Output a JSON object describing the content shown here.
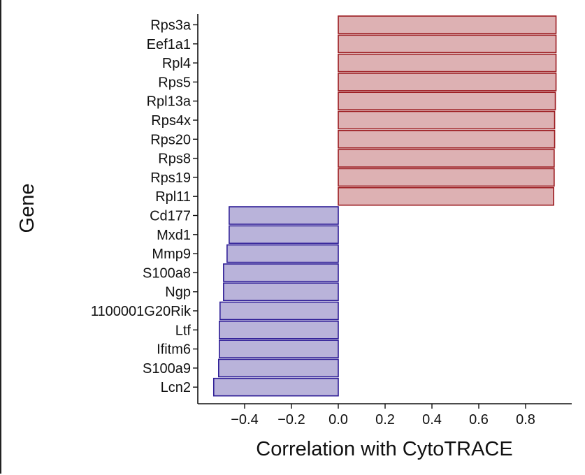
{
  "chart_data": {
    "type": "bar",
    "orientation": "horizontal",
    "xlabel": "Correlation with CytoTRACE",
    "ylabel": "Gene",
    "xlim": [
      -0.57,
      0.97
    ],
    "xticks": [
      -0.4,
      -0.2,
      0.0,
      0.2,
      0.4,
      0.6,
      0.8
    ],
    "xtick_labels": [
      "−0.4",
      "−0.2",
      "0.0",
      "0.2",
      "0.4",
      "0.6",
      "0.8"
    ],
    "grid": false,
    "categories": [
      "Rps3a",
      "Eef1a1",
      "Rpl4",
      "Rps5",
      "Rpl13a",
      "Rps4x",
      "Rps20",
      "Rps8",
      "Rps19",
      "Rpl11",
      "Cd177",
      "Mxd1",
      "Mmp9",
      "S100a8",
      "Ngp",
      "1100001G20Rik",
      "Ltf",
      "Ifitm6",
      "S100a9",
      "Lcn2"
    ],
    "values": [
      0.93,
      0.93,
      0.93,
      0.93,
      0.927,
      0.924,
      0.924,
      0.922,
      0.922,
      0.92,
      -0.466,
      -0.466,
      -0.475,
      -0.49,
      -0.49,
      -0.505,
      -0.508,
      -0.508,
      -0.511,
      -0.532
    ],
    "colors": {
      "positive_fill": "#ddb1b3",
      "positive_stroke": "#9b1a1f",
      "negative_fill": "#b9b3da",
      "negative_stroke": "#2e1d96"
    }
  }
}
